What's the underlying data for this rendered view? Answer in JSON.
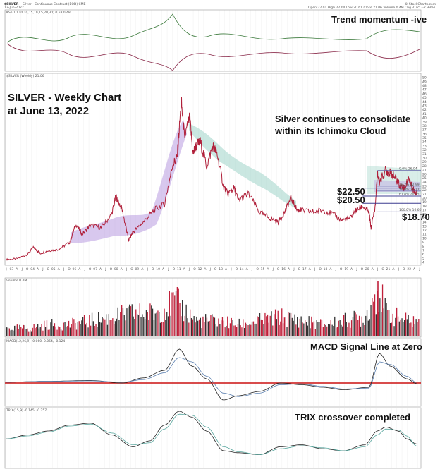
{
  "header": {
    "symbol": "$SILVER",
    "subtitle": "Silver - Continuous Contract (EOD) CME",
    "date": "13-Jun-2022",
    "stats": "Open 22.01  High 22.04  Low 20.61  Close 21.06  Volume 0.4M  Chg -0.65 (-2.99%)",
    "watermark": "© StockCharts.com"
  },
  "annotations": {
    "trend_momentum": "Trend momentum -ive",
    "chart_title_line1": "SILVER - Weekly Chart",
    "chart_title_line2": "at June 13, 2022",
    "consolidate_line1": "Silver continues to consolidate",
    "consolidate_line2": "within its Ichimoku Cloud",
    "level_2250": "$22.50",
    "level_2050": "$20.50",
    "level_1870": "$18.70",
    "macd_note": "MACD Signal Line at Zero",
    "trix_note": "TRIX crossover completed"
  },
  "panel_labels": {
    "kst": "KST(10,10,10,15,10,15,20,30) 0.58 0.48",
    "price": "$SILVER (Weekly) 21.06",
    "volume": "Volume 0.4M",
    "macd": "MACD(12,26,9) -0.060, 0.064, -0.124",
    "trix": "TRIX(15,9) -0.145, -0.257"
  },
  "fib_labels": [
    "0.0% 26.94",
    "38.2% 22.99",
    "50.0% 21.77",
    "61.8% 20.55",
    "100.0% 16.60"
  ],
  "chart_data": {
    "type": "line",
    "title": "SILVER - Weekly Chart",
    "ylim": [
      4,
      50
    ],
    "y_ticks": [
      4,
      5,
      6,
      7,
      8,
      9,
      10,
      11,
      12,
      13,
      14,
      15,
      16,
      17,
      18,
      19,
      20,
      21,
      22,
      23,
      24,
      25,
      26,
      27,
      28,
      29,
      30,
      31,
      32,
      33,
      34,
      35,
      36,
      37,
      38,
      39,
      40,
      41,
      42,
      43,
      44,
      45,
      46,
      47,
      48,
      49,
      50
    ],
    "x_ticks": [
      "2003",
      "J",
      "A",
      "J",
      "O",
      "2004",
      "A",
      "J",
      "O",
      "2005",
      "A",
      "J",
      "O",
      "2006",
      "A",
      "J",
      "O",
      "2007",
      "A",
      "J",
      "O",
      "2008",
      "A",
      "J",
      "O",
      "2009",
      "A",
      "J",
      "O",
      "2010",
      "A",
      "J",
      "O",
      "2011",
      "A",
      "J",
      "O",
      "2012",
      "A",
      "J",
      "O",
      "2013",
      "A",
      "J",
      "O",
      "2014",
      "A",
      "J",
      "O",
      "2015",
      "A",
      "J",
      "O",
      "2016",
      "A",
      "J",
      "O",
      "2017",
      "A",
      "J",
      "O",
      "2018",
      "A",
      "J",
      "O",
      "2019",
      "A",
      "J",
      "O",
      "2020",
      "A",
      "J",
      "O",
      "2021",
      "A",
      "J",
      "O",
      "2022",
      "A",
      "J"
    ],
    "x_label_display": [
      "J",
      "03",
      "A",
      "J",
      "O",
      "04",
      "A",
      "J",
      "O",
      "05",
      "A",
      "J",
      "O",
      "06",
      "A",
      "J",
      "O",
      "07",
      "A",
      "J",
      "O",
      "08",
      "A",
      "J",
      "O",
      "09",
      "A",
      "J",
      "O",
      "10",
      "A",
      "J",
      "O",
      "11",
      "A",
      "J",
      "O",
      "12",
      "A",
      "J",
      "O",
      "13",
      "A",
      "J",
      "O",
      "14",
      "A",
      "J",
      "O",
      "15",
      "A",
      "J",
      "O",
      "16",
      "A",
      "J",
      "O",
      "17",
      "A",
      "J",
      "O",
      "18",
      "A",
      "J",
      "O",
      "19",
      "A",
      "J",
      "O",
      "20",
      "A",
      "J",
      "O",
      "21",
      "A",
      "J",
      "O",
      "22",
      "A",
      "J"
    ],
    "price": {
      "x": [
        2003.0,
        2003.5,
        2004.0,
        2004.3,
        2004.6,
        2005.0,
        2005.5,
        2006.0,
        2006.3,
        2006.6,
        2007.0,
        2007.5,
        2008.0,
        2008.2,
        2008.5,
        2008.8,
        2009.0,
        2009.5,
        2010.0,
        2010.5,
        2010.9,
        2011.1,
        2011.3,
        2011.45,
        2011.7,
        2011.85,
        2012.0,
        2012.2,
        2012.5,
        2012.8,
        2013.0,
        2013.3,
        2013.5,
        2013.8,
        2014.0,
        2014.5,
        2015.0,
        2015.5,
        2015.9,
        2016.2,
        2016.5,
        2016.8,
        2017.0,
        2017.5,
        2018.0,
        2018.5,
        2018.9,
        2019.3,
        2019.6,
        2019.9,
        2020.2,
        2020.3,
        2020.5,
        2020.6,
        2020.7,
        2021.0,
        2021.1,
        2021.3,
        2021.5,
        2021.7,
        2021.9,
        2022.1,
        2022.25,
        2022.4,
        2022.45
      ],
      "y": [
        4.7,
        4.9,
        6.0,
        7.8,
        6.2,
        6.9,
        7.3,
        9.0,
        13.5,
        11.0,
        13.3,
        12.6,
        16.0,
        20.5,
        17.0,
        9.5,
        11.5,
        14.0,
        17.0,
        18.5,
        28.5,
        30.0,
        44.0,
        35.0,
        40.0,
        31.0,
        33.0,
        34.0,
        28.0,
        33.0,
        31.0,
        23.0,
        21.0,
        22.5,
        19.5,
        21.0,
        16.5,
        15.0,
        14.0,
        16.5,
        20.0,
        17.0,
        17.0,
        16.5,
        17.0,
        16.0,
        14.5,
        15.0,
        17.0,
        18.0,
        16.5,
        12.5,
        18.0,
        26.0,
        24.0,
        27.0,
        26.5,
        26.0,
        24.5,
        23.0,
        22.5,
        25.0,
        22.5,
        21.5,
        21.1
      ]
    },
    "fibonacci_retracement": {
      "0.0%": 26.94,
      "38.2%": 22.99,
      "50.0%": 21.77,
      "61.8%": 20.55,
      "100.0%": 16.6
    },
    "horizontal_levels": [
      22.5,
      20.5,
      18.7
    ],
    "volume": {
      "x": [
        2003,
        2004,
        2005,
        2006,
        2007,
        2008,
        2009,
        2010,
        2011,
        2012,
        2013,
        2014,
        2015,
        2016,
        2017,
        2018,
        2019,
        2020,
        2020.6,
        2021,
        2022
      ],
      "y": [
        2,
        2,
        3,
        3,
        4,
        5,
        6,
        6,
        9,
        4,
        4,
        3,
        4,
        5,
        4,
        3,
        4,
        5,
        13,
        6,
        4
      ]
    },
    "macd": {
      "x": [
        2003,
        2005,
        2007,
        2008.5,
        2009.5,
        2010.5,
        2011.2,
        2011.8,
        2012.5,
        2013.3,
        2014,
        2015,
        2016,
        2017,
        2018,
        2019,
        2020.2,
        2020.7,
        2021.2,
        2022,
        2022.45
      ],
      "macd": [
        0.1,
        0.2,
        0.3,
        0.0,
        0.6,
        1.5,
        4.0,
        2.0,
        0.5,
        -2.0,
        -1.5,
        -1.0,
        0.0,
        -0.2,
        -0.5,
        -0.8,
        -0.5,
        3.5,
        2.0,
        0.5,
        -0.06
      ],
      "signal": [
        0.1,
        0.2,
        0.25,
        0.1,
        0.4,
        1.2,
        3.0,
        2.5,
        0.8,
        -1.2,
        -1.6,
        -1.2,
        -0.2,
        -0.1,
        -0.4,
        -0.7,
        -0.6,
        2.5,
        2.2,
        0.8,
        0.06
      ]
    },
    "trix": {
      "x": [
        2003,
        2004,
        2005,
        2006,
        2007,
        2008,
        2009,
        2009.8,
        2010.5,
        2011.2,
        2011.8,
        2012.5,
        2013.3,
        2014,
        2015,
        2016,
        2017,
        2018,
        2019,
        2020,
        2020.6,
        2021,
        2021.6,
        2022,
        2022.45
      ],
      "trix": [
        0.1,
        0.3,
        0.5,
        0.8,
        0.9,
        0.3,
        -0.3,
        0.0,
        0.8,
        1.5,
        1.2,
        0.5,
        -0.5,
        -0.6,
        -0.7,
        -0.3,
        -0.2,
        -0.4,
        -0.5,
        -0.2,
        0.5,
        0.7,
        0.5,
        0.1,
        -0.15
      ],
      "signal": [
        0.1,
        0.25,
        0.45,
        0.75,
        0.85,
        0.4,
        -0.2,
        -0.1,
        0.6,
        1.35,
        1.3,
        0.7,
        -0.3,
        -0.55,
        -0.7,
        -0.4,
        -0.25,
        -0.35,
        -0.5,
        -0.3,
        0.3,
        0.6,
        0.55,
        0.25,
        -0.26
      ]
    }
  }
}
